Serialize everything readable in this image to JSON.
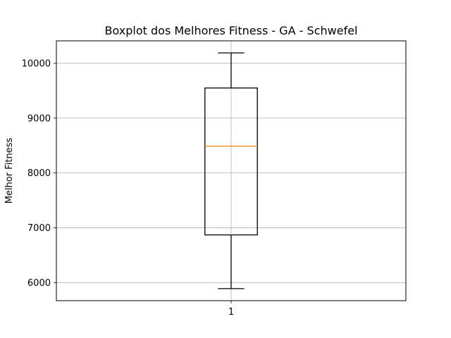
{
  "chart_data": {
    "type": "boxplot",
    "title": "Boxplot dos Melhores Fitness - GA - Schwefel",
    "xlabel": "",
    "ylabel": "Melhor Fitness",
    "categories": [
      "1"
    ],
    "boxes": [
      {
        "category": "1",
        "whisker_low": 5890,
        "q1": 6870,
        "median": 8490,
        "q3": 9550,
        "whisker_high": 10190
      }
    ],
    "yticks": [
      6000,
      7000,
      8000,
      9000,
      10000
    ],
    "ylim": [
      5670,
      10410
    ],
    "xlim": [
      0.5,
      1.5
    ],
    "grid": true,
    "colors": {
      "box": "#000000",
      "median": "#ff7f0e",
      "grid": "#b0b0b0"
    }
  }
}
